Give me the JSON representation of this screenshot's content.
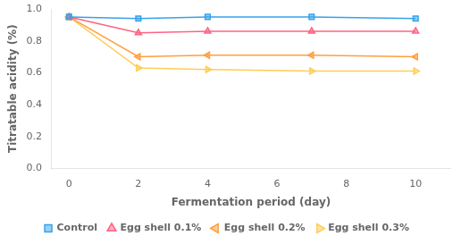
{
  "chart_data": {
    "type": "line",
    "x": [
      0,
      2,
      4,
      7,
      10
    ],
    "series": [
      {
        "name": "Control",
        "values": [
          0.95,
          0.94,
          0.95,
          0.95,
          0.94
        ],
        "marker": "square"
      },
      {
        "name": "Egg shell 0.1%",
        "values": [
          0.95,
          0.85,
          0.86,
          0.86,
          0.86
        ],
        "marker": "triangle-up"
      },
      {
        "name": "Egg shell 0.2%",
        "values": [
          0.95,
          0.7,
          0.71,
          0.71,
          0.7
        ],
        "marker": "triangle-left"
      },
      {
        "name": "Egg shell 0.3%",
        "values": [
          0.95,
          0.63,
          0.62,
          0.61,
          0.61
        ],
        "marker": "triangle-right"
      }
    ],
    "xlabel": "Fermentation period (day)",
    "ylabel": "Titratable acidity (%)",
    "xlim": [
      -0.5,
      11
    ],
    "ylim": [
      0.0,
      1.0
    ],
    "xticks": [
      0,
      2,
      4,
      6,
      8,
      10
    ],
    "yticks": [
      {
        "value": 0.0,
        "label": "0.0"
      },
      0.2,
      0.4,
      0.6,
      0.8,
      {
        "value": 1.0,
        "label": "1.0"
      }
    ],
    "grid": false,
    "legend": "bottom"
  }
}
